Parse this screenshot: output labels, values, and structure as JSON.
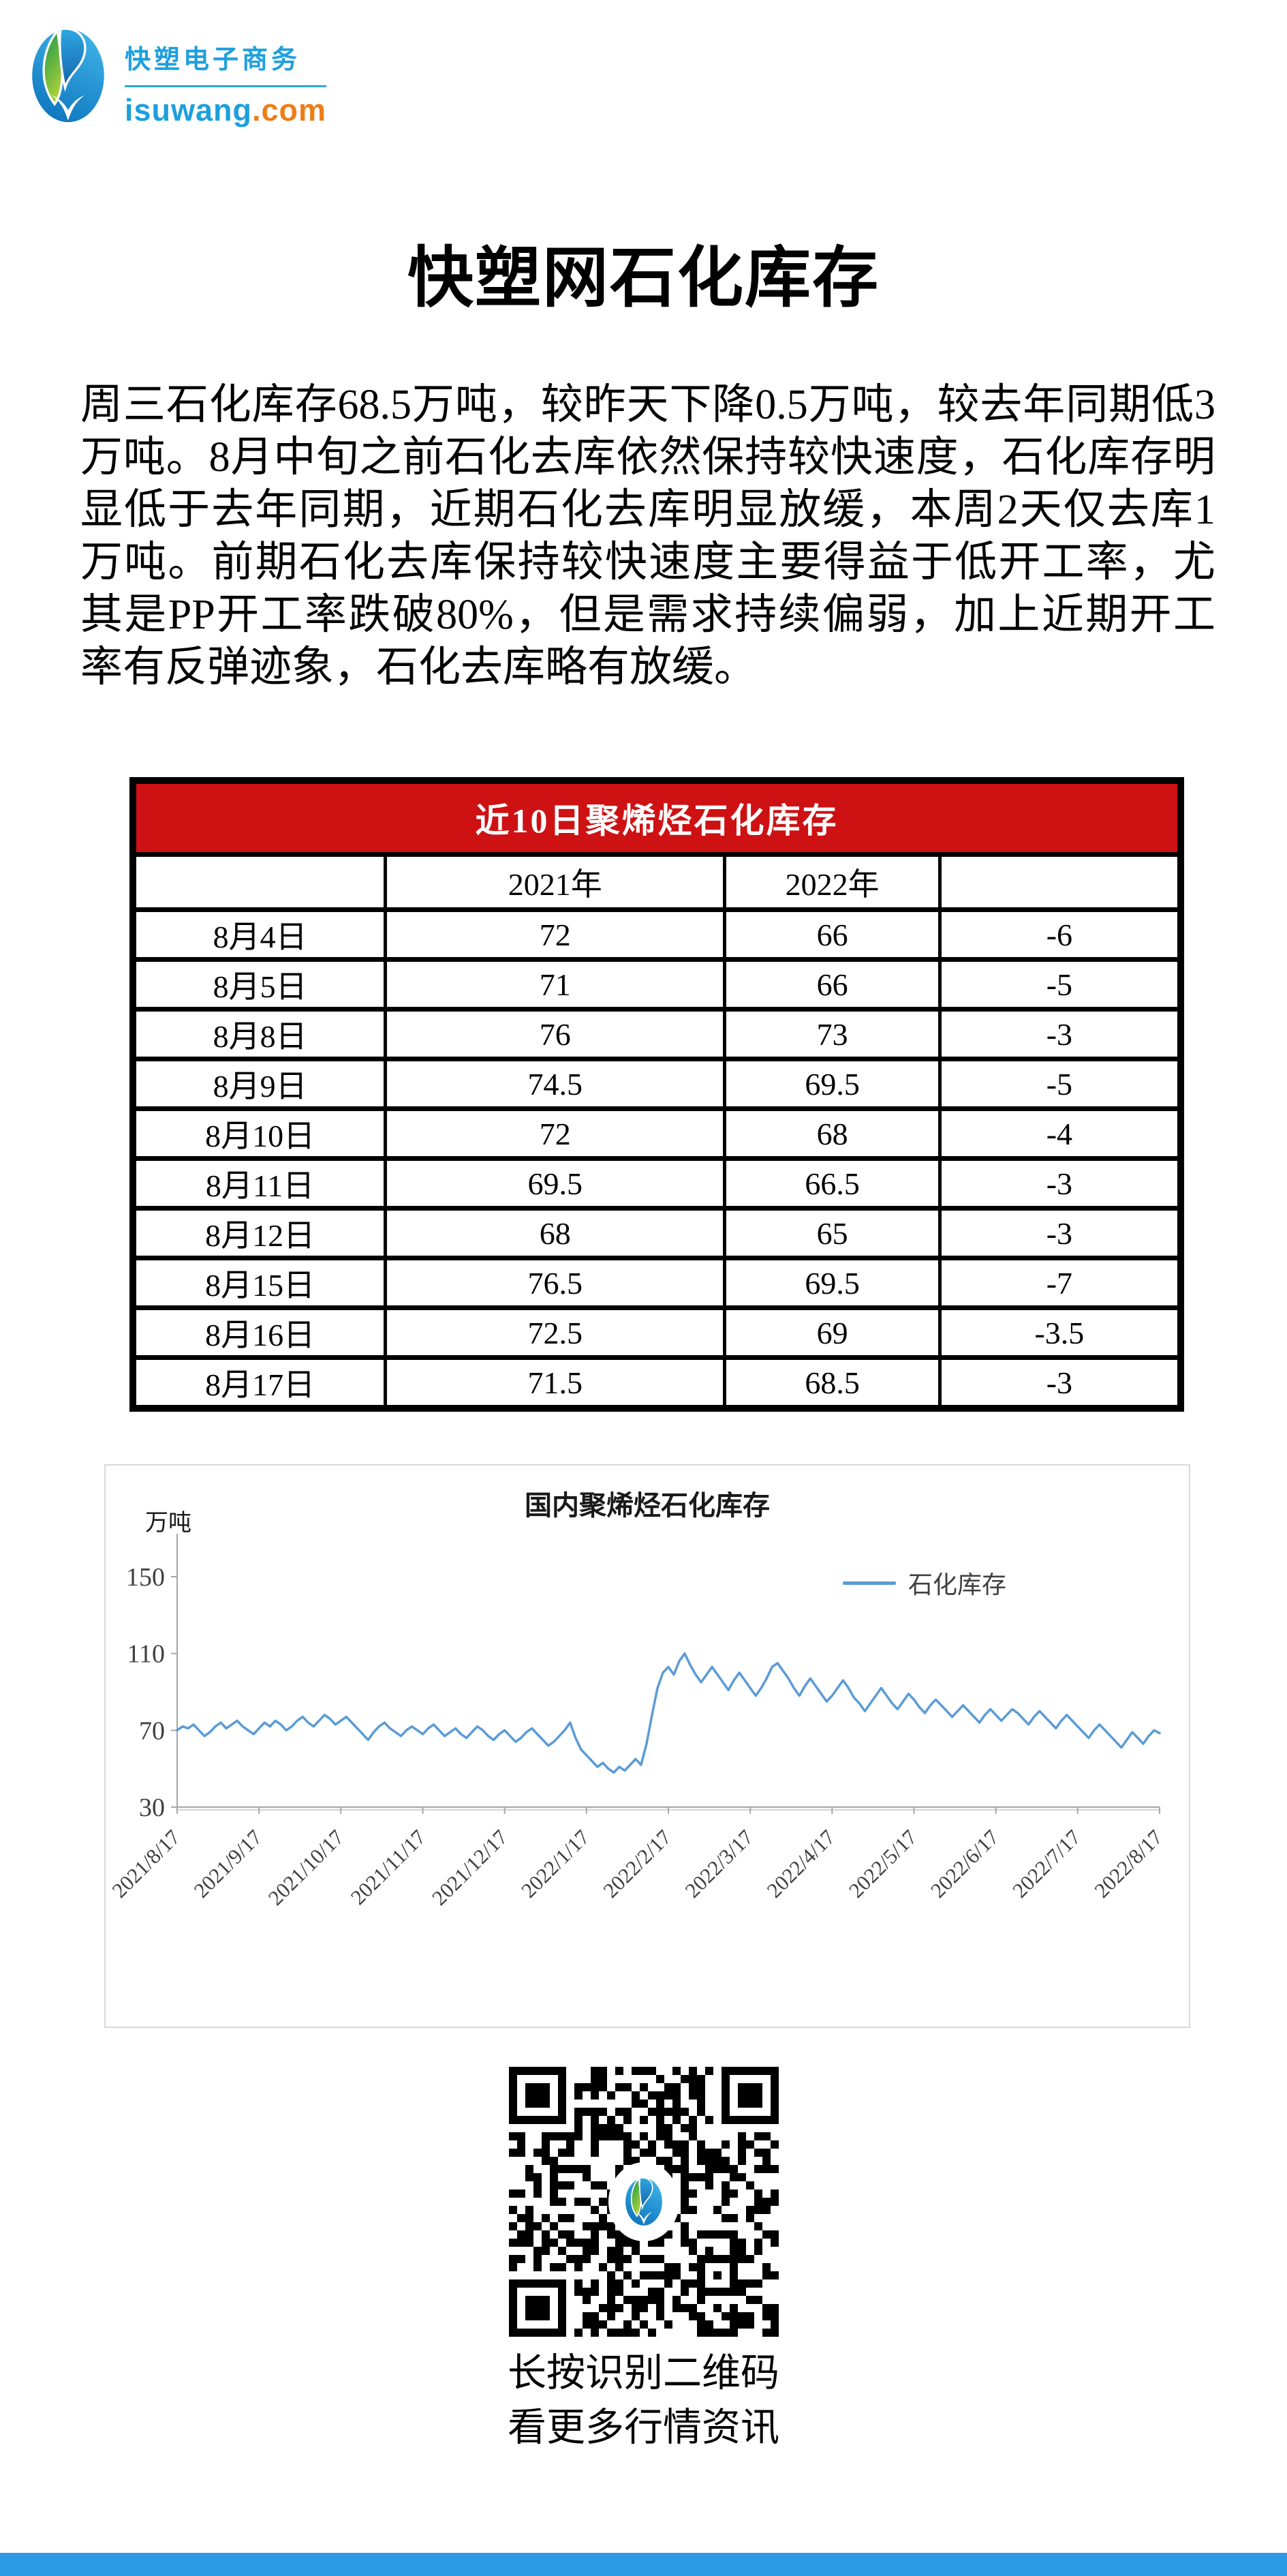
{
  "brand": {
    "name_cn": "快塑电子商务",
    "domain_main": "isuwang",
    "domain_tld": ".com",
    "blue": "#1E9FDD",
    "orange": "#EE7D17"
  },
  "article": {
    "title": "快塑网石化库存",
    "paragraph": "周三石化库存68.5万吨，较昨天下降0.5万吨，较去年同期低3万吨。8月中旬之前石化去库依然保持较快速度，石化库存明显低于去年同期，近期石化去库明显放缓，本周2天仅去库1万吨。前期石化去库保持较快速度主要得益于低开工率，尤其是PP开工率跌破80%，但是需求持续偏弱，加上近期开工率有反弹迹象，石化去库略有放缓。"
  },
  "table": {
    "title": "近10日聚烯烃石化库存",
    "title_bg": "#CE1113",
    "headers": [
      "",
      "2021年",
      "2022年",
      ""
    ],
    "rows": [
      [
        "8月4日",
        "72",
        "66",
        "-6"
      ],
      [
        "8月5日",
        "71",
        "66",
        "-5"
      ],
      [
        "8月8日",
        "76",
        "73",
        "-3"
      ],
      [
        "8月9日",
        "74.5",
        "69.5",
        "-5"
      ],
      [
        "8月10日",
        "72",
        "68",
        "-4"
      ],
      [
        "8月11日",
        "69.5",
        "66.5",
        "-3"
      ],
      [
        "8月12日",
        "68",
        "65",
        "-3"
      ],
      [
        "8月15日",
        "76.5",
        "69.5",
        "-7"
      ],
      [
        "8月16日",
        "72.5",
        "69",
        "-3.5"
      ],
      [
        "8月17日",
        "71.5",
        "68.5",
        "-3"
      ]
    ]
  },
  "chart_data": {
    "type": "line",
    "title": "国内聚烯烃石化库存",
    "ylabel": "万吨",
    "legend": [
      "石化库存"
    ],
    "line_color": "#5B9BD5",
    "axis_color": "#A6A6A6",
    "tick_text_color": "#3F3F3F",
    "ylim": [
      30,
      150
    ],
    "yticks": [
      150,
      110,
      70,
      30
    ],
    "x_tick_labels": [
      "2021/8/17",
      "2021/9/17",
      "2021/10/17",
      "2021/11/17",
      "2021/12/17",
      "2022/1/17",
      "2022/2/17",
      "2022/3/17",
      "2022/4/17",
      "2022/5/17",
      "2022/6/17",
      "2022/7/17",
      "2022/8/17"
    ],
    "values": [
      70,
      72,
      71,
      73,
      70,
      67,
      69,
      72,
      74,
      71,
      73,
      75,
      72,
      70,
      68,
      71,
      74,
      72,
      75,
      73,
      70,
      72,
      75,
      77,
      74,
      72,
      75,
      78,
      76,
      73,
      75,
      77,
      74,
      71,
      68,
      65,
      69,
      72,
      74,
      71,
      69,
      67,
      70,
      72,
      70,
      68,
      71,
      73,
      70,
      67,
      69,
      71,
      68,
      66,
      69,
      72,
      70,
      67,
      65,
      68,
      70,
      67,
      64,
      66,
      69,
      71,
      68,
      65,
      62,
      64,
      67,
      70,
      74,
      66,
      60,
      57,
      54,
      51,
      53,
      50,
      48,
      51,
      49,
      52,
      55,
      52,
      63,
      78,
      92,
      100,
      103,
      99,
      106,
      110,
      104,
      99,
      95,
      99,
      103,
      99,
      95,
      91,
      96,
      100,
      96,
      92,
      88,
      92,
      97,
      103,
      105,
      101,
      97,
      92,
      88,
      93,
      97,
      93,
      89,
      85,
      88,
      92,
      96,
      92,
      87,
      84,
      80,
      84,
      88,
      92,
      88,
      84,
      81,
      85,
      89,
      86,
      82,
      79,
      83,
      86,
      83,
      80,
      77,
      80,
      83,
      80,
      77,
      74,
      78,
      81,
      78,
      75,
      78,
      81,
      79,
      76,
      73,
      77,
      80,
      77,
      74,
      71,
      75,
      78,
      75,
      72,
      69,
      66,
      70,
      73,
      70,
      67,
      64,
      61,
      65,
      69,
      66,
      63,
      67,
      70,
      68.5
    ]
  },
  "qr": {
    "caption_line1": "长按识别二维码",
    "caption_line2": "看更多行情资讯"
  },
  "footer": {
    "bar_color": "#2D9AE8"
  }
}
